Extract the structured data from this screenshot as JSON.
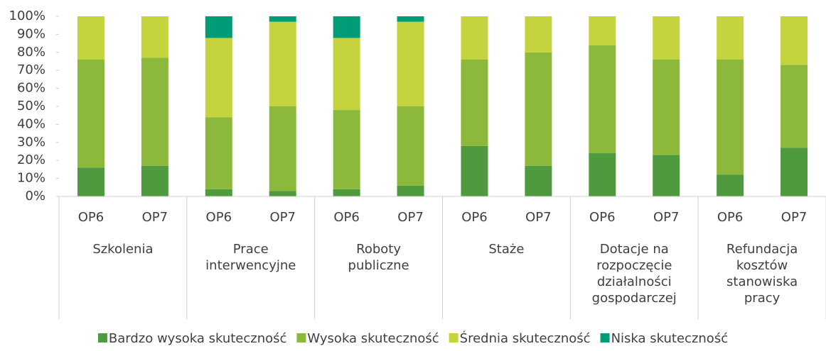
{
  "chart_data": {
    "type": "bar",
    "stacked": true,
    "groups": [
      "Szkolenia",
      "Prace interwencyjne",
      "Roboty publiczne",
      "Staże",
      "Dotacje na rozpoczęcie działalności gospodarczej",
      "Refundacja kosztów stanowiska pracy"
    ],
    "categories": [
      "OP6",
      "OP7",
      "OP6",
      "OP7",
      "OP6",
      "OP7",
      "OP6",
      "OP7",
      "OP6",
      "OP7",
      "OP6",
      "OP7"
    ],
    "series": [
      {
        "name": "Bardzo wysoka skuteczność",
        "color": "#4f9a3f",
        "values": [
          16,
          17,
          4,
          3,
          4,
          6,
          28,
          17,
          24,
          23,
          12,
          27
        ]
      },
      {
        "name": "Wysoka skuteczność",
        "color": "#8cb83b",
        "values": [
          60,
          60,
          40,
          47,
          44,
          44,
          48,
          63,
          60,
          53,
          64,
          46
        ]
      },
      {
        "name": "Średnia skuteczność",
        "color": "#c5d33f",
        "values": [
          24,
          23,
          44,
          47,
          40,
          47,
          24,
          20,
          16,
          24,
          24,
          27
        ]
      },
      {
        "name": "Niska skuteczność",
        "color": "#009b77",
        "values": [
          0,
          0,
          12,
          3,
          12,
          3,
          0,
          0,
          0,
          0,
          0,
          0
        ]
      }
    ],
    "ylim": [
      0,
      100
    ],
    "yticks": [
      {
        "value": 0,
        "label": "0%"
      },
      {
        "value": 10,
        "label": "10%"
      },
      {
        "value": 20,
        "label": "20%"
      },
      {
        "value": 30,
        "label": "30%"
      },
      {
        "value": 40,
        "label": "40%"
      },
      {
        "value": 50,
        "label": "50%"
      },
      {
        "value": 60,
        "label": "60%"
      },
      {
        "value": 70,
        "label": "70%"
      },
      {
        "value": 80,
        "label": "80%"
      },
      {
        "value": 90,
        "label": "90%"
      },
      {
        "value": 100,
        "label": "100%"
      }
    ],
    "legend": "bottom"
  }
}
